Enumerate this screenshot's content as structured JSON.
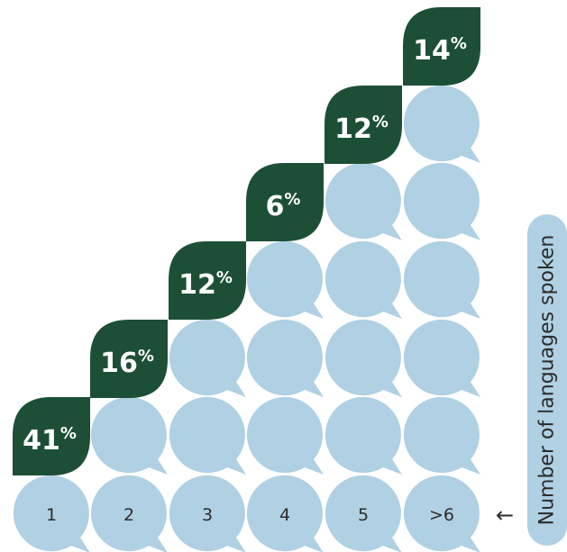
{
  "colors": {
    "bubble": "#b0d0e3",
    "highlight": "#1c4f36",
    "label_text": "#ffffff",
    "axis_text": "#2c2c2c",
    "background": "#ffffff"
  },
  "chart_data": {
    "type": "bar",
    "categories": [
      "1",
      "2",
      "3",
      "4",
      "5",
      ">6"
    ],
    "values": [
      41,
      16,
      12,
      6,
      12,
      14
    ],
    "value_labels": [
      "41",
      "16",
      "12",
      "6",
      "12",
      "14"
    ],
    "value_suffix": "%",
    "xlabel": "Number of languages spoken",
    "arrow": "←",
    "title": "",
    "ylabel": ""
  }
}
